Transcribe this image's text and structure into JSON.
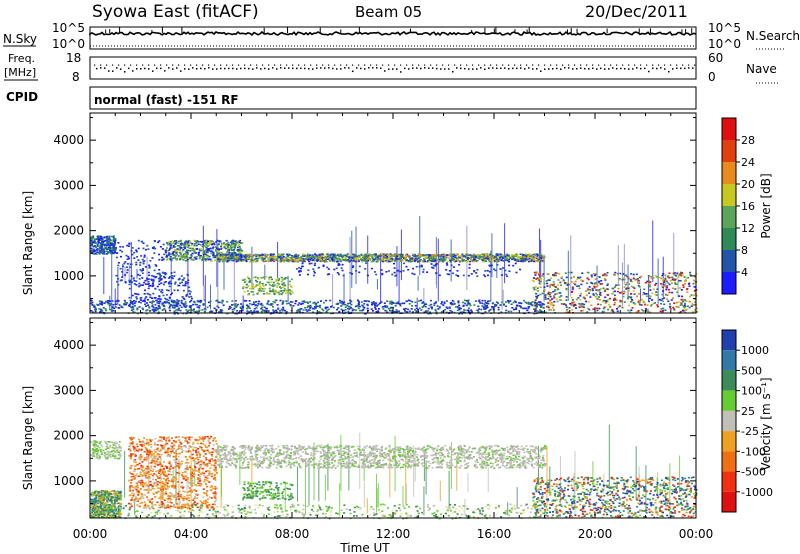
{
  "header": {
    "station": "Syowa East (fitACF)",
    "beam": "Beam 05",
    "date": "20/Dec/2011"
  },
  "nsky_panel": {
    "left_label": "N.Sky",
    "left_ticks": [
      "10^5",
      "10^0"
    ],
    "right_ticks": [
      "10^5",
      "10^0"
    ],
    "right_label": "N.Search"
  },
  "freq_panel": {
    "left_label_line1": "Freq.",
    "left_label_line2": "[MHz]",
    "left_ticks": [
      "18",
      "8"
    ],
    "right_ticks": [
      "60",
      "0"
    ],
    "right_label": "Nave"
  },
  "cpid_panel": {
    "label": "CPID",
    "mode": "normal (fast) -151 RF"
  },
  "x_axis": {
    "tick_labels": [
      "00:00",
      "04:00",
      "08:00",
      "12:00",
      "16:00",
      "20:00",
      "00:00"
    ],
    "label": "Time UT"
  },
  "chart_data": [
    {
      "type": "heatmap",
      "panel": "power",
      "xlabel": "Time UT",
      "ylabel": "Slant Range [km]",
      "xlim": [
        0,
        24
      ],
      "ylim": [
        180,
        4600
      ],
      "y_ticks": [
        "1000",
        "2000",
        "3000",
        "4000"
      ],
      "colorbar": {
        "label": "Power [dB]",
        "labels": [
          "4",
          "8",
          "12",
          "16",
          "20",
          "24",
          "28"
        ],
        "colors": [
          "#1c1cff",
          "#2255aa",
          "#2e8b57",
          "#5aa55a",
          "#c8c820",
          "#e88a1c",
          "#e04010",
          "#e01010"
        ]
      },
      "features": [
        {
          "time_start": 0.0,
          "time_end": 1.0,
          "range_start": 1500,
          "range_end": 1900,
          "level": 8
        },
        {
          "time_start": 3.0,
          "time_end": 6.0,
          "range_start": 1300,
          "range_end": 1800,
          "level": 12
        },
        {
          "time_start": 5.0,
          "time_end": 18.0,
          "range_start": 1320,
          "range_end": 1500,
          "level": 16
        },
        {
          "time_start": 0.0,
          "time_end": 18.0,
          "range_start": 180,
          "range_end": 500,
          "level": 8
        },
        {
          "time_start": 17.5,
          "time_end": 24.0,
          "range_start": 200,
          "range_end": 1100,
          "level": 12
        }
      ]
    },
    {
      "type": "heatmap",
      "panel": "velocity",
      "xlabel": "Time UT",
      "ylabel": "Slant Range [km]",
      "xlim": [
        0,
        24
      ],
      "ylim": [
        180,
        4600
      ],
      "y_ticks": [
        "1000",
        "2000",
        "3000",
        "4000"
      ],
      "colorbar": {
        "label": "Velocity [m s⁻¹]",
        "labels": [
          "1000",
          "500",
          "100",
          "25",
          "-25",
          "-100",
          "-500",
          "-1000"
        ],
        "colors": [
          "#2040b0",
          "#2f7aa8",
          "#3b8c5a",
          "#66cc33",
          "#c0c0b8",
          "#f0a020",
          "#f07010",
          "#f03010",
          "#e01010"
        ]
      },
      "features": [
        {
          "time_start": 0.0,
          "time_end": 1.2,
          "range_start": 200,
          "range_end": 800,
          "velocity": 100
        },
        {
          "time_start": 1.5,
          "time_end": 5.0,
          "range_start": 400,
          "range_end": 2000,
          "velocity": -100
        },
        {
          "time_start": 5.0,
          "time_end": 18.0,
          "range_start": 1300,
          "range_end": 1800,
          "velocity": 0
        },
        {
          "time_start": 17.5,
          "time_end": 24.0,
          "range_start": 200,
          "range_end": 1100,
          "velocity": 500
        }
      ]
    }
  ]
}
